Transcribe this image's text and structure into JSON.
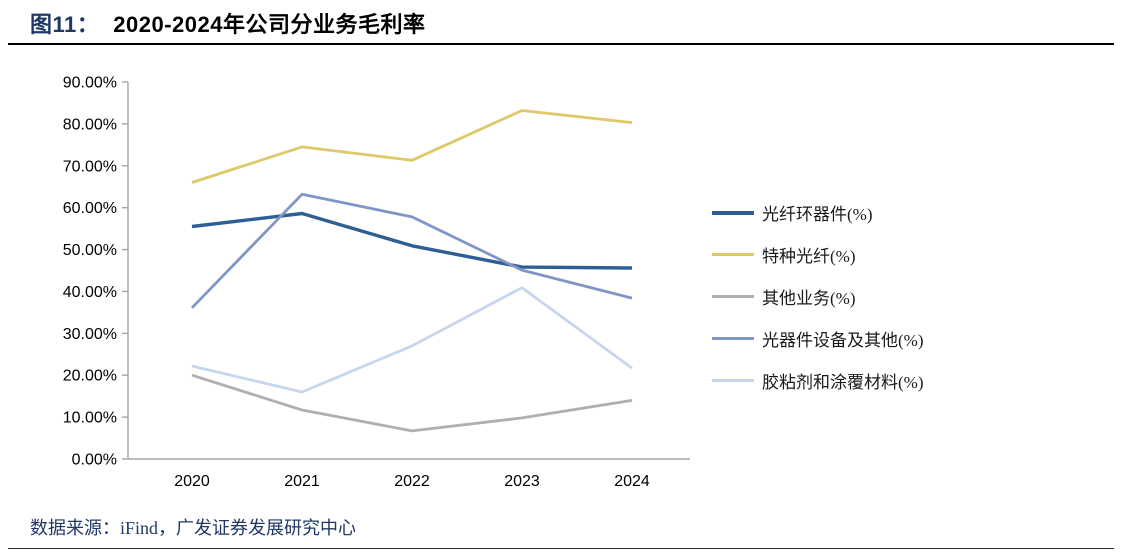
{
  "header": {
    "figure_label": "图11：",
    "title": "2020-2024年公司分业务毛利率"
  },
  "footer": {
    "source": "数据来源：iFind，广发证券发展研究中心"
  },
  "colors": {
    "title_accent": "#1F3864",
    "title_rule": "#000000",
    "axis": "#A6A6A6",
    "source_text": "#1F3864"
  },
  "chart_data": {
    "type": "line",
    "title": "2020-2024年公司分业务毛利率",
    "xlabel": "",
    "ylabel": "",
    "categories": [
      "2020",
      "2021",
      "2022",
      "2023",
      "2024"
    ],
    "series": [
      {
        "name": "光纤环器件(%)",
        "color": "#2E5F94",
        "values": [
          55.5,
          58.6,
          50.9,
          45.8,
          45.6
        ]
      },
      {
        "name": "特种光纤(%)",
        "color": "#DFC868",
        "values": [
          66.0,
          74.5,
          71.3,
          83.2,
          80.3
        ]
      },
      {
        "name": "其他业务(%)",
        "color": "#AFAFAF",
        "values": [
          20.0,
          11.7,
          6.7,
          9.8,
          14.0
        ]
      },
      {
        "name": "光器件设备及其他(%)",
        "color": "#8096C6",
        "values": [
          36.1,
          63.2,
          57.8,
          45.1,
          38.4
        ]
      },
      {
        "name": "胶粘剂和涂覆材料(%)",
        "color": "#C7D6EC",
        "values": [
          22.2,
          16.0,
          27.0,
          40.9,
          21.7
        ]
      }
    ],
    "ylim": [
      0,
      90
    ],
    "y_tick_labels": [
      "90.00%",
      "80.00%",
      "70.00%",
      "60.00%",
      "50.00%",
      "40.00%",
      "30.00%",
      "20.00%",
      "10.00%",
      "0.00%"
    ],
    "axis_color": "#A6A6A6",
    "grid": false,
    "legend_position": "right"
  }
}
